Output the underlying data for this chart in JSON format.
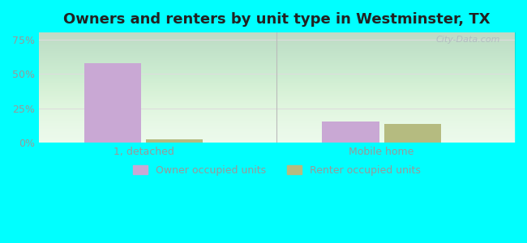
{
  "title": "Owners and renters by unit type in Westminster, TX",
  "categories": [
    "1, detached",
    "Mobile home"
  ],
  "owner_values": [
    0.578,
    0.155
  ],
  "renter_values": [
    0.025,
    0.135
  ],
  "owner_color": "#c9a8d4",
  "renter_color": "#b5bb80",
  "ylim": [
    0,
    0.8
  ],
  "yticks": [
    0,
    0.25,
    0.5,
    0.75
  ],
  "ytick_labels": [
    "0%",
    "25%",
    "50%",
    "75%"
  ],
  "plot_bg": "#eafaea",
  "outer_bg": "#00ffff",
  "bar_width": 0.12,
  "group_centers": [
    0.22,
    0.72
  ],
  "group_sep": 0.5,
  "legend_labels": [
    "Owner occupied units",
    "Renter occupied units"
  ],
  "watermark": "City-Data.com",
  "title_fontsize": 13,
  "axis_label_color": "#999999",
  "grid_color": "#dddddd",
  "title_color": "#222222"
}
